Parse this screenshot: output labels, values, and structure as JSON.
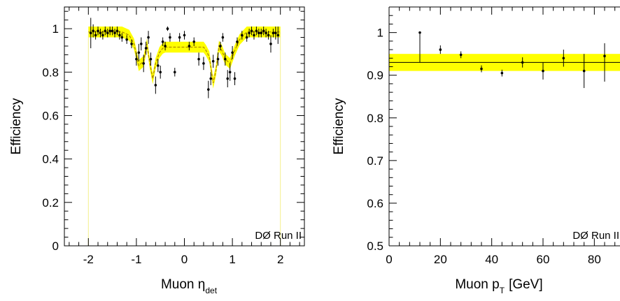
{
  "chart_data": [
    {
      "type": "scatter",
      "xlabel": "Muon η",
      "xlabel_subscript": "det",
      "ylabel": "Efficiency",
      "annotation": "DØ Run II",
      "xlim": [
        -2.5,
        2.5
      ],
      "ylim": [
        0,
        1.1
      ],
      "xticks": [
        -2,
        -1,
        0,
        1,
        2
      ],
      "yticks": [
        0,
        0.2,
        0.4,
        0.6,
        0.8,
        1
      ],
      "ytick_labels": [
        "0",
        "0.2",
        "0.4",
        "0.6",
        "0.8",
        "1"
      ],
      "band_color": "#ffff00",
      "series": [
        {
          "x": [
            -1.95,
            -1.9,
            -1.85,
            -1.8,
            -1.75,
            -1.7,
            -1.65,
            -1.6,
            -1.55,
            -1.5,
            -1.45,
            -1.4,
            -1.35,
            -1.3,
            -1.2,
            -1.1,
            -1.0,
            -0.95,
            -0.9,
            -0.85,
            -0.8,
            -0.75,
            -0.7,
            -0.6,
            -0.55,
            -0.5,
            -0.45,
            -0.4,
            -0.35,
            -0.3,
            -0.2,
            -0.1,
            0.0,
            0.1,
            0.2,
            0.3,
            0.4,
            0.5,
            0.55,
            0.6,
            0.7,
            0.75,
            0.8,
            0.85,
            0.9,
            0.95,
            1.0,
            1.05,
            1.1,
            1.2,
            1.3,
            1.35,
            1.4,
            1.45,
            1.5,
            1.55,
            1.6,
            1.65,
            1.7,
            1.75,
            1.8,
            1.85,
            1.9,
            1.95
          ],
          "y": [
            0.98,
            0.99,
            0.97,
            0.99,
            0.98,
            0.97,
            0.99,
            0.98,
            0.99,
            0.99,
            0.98,
            0.99,
            0.97,
            0.96,
            0.95,
            0.93,
            0.86,
            0.89,
            0.93,
            0.84,
            0.91,
            0.96,
            0.86,
            0.74,
            0.83,
            0.8,
            0.94,
            0.92,
            1.0,
            0.96,
            0.8,
            0.96,
            0.97,
            0.92,
            0.94,
            0.86,
            0.84,
            0.72,
            0.77,
            0.85,
            0.86,
            0.92,
            0.96,
            0.86,
            0.77,
            0.8,
            0.89,
            0.77,
            0.94,
            0.97,
            0.96,
            0.98,
            0.99,
            0.97,
            0.99,
            0.98,
            0.98,
            0.99,
            0.98,
            0.97,
            0.93,
            0.98,
            0.98,
            0.97
          ],
          "err": [
            0.07,
            0.03,
            0.02,
            0.02,
            0.02,
            0.02,
            0.02,
            0.02,
            0.02,
            0.02,
            0.02,
            0.02,
            0.02,
            0.02,
            0.02,
            0.02,
            0.03,
            0.04,
            0.03,
            0.04,
            0.03,
            0.03,
            0.03,
            0.04,
            0.03,
            0.03,
            0.02,
            0.02,
            0.01,
            0.02,
            0.02,
            0.02,
            0.02,
            0.02,
            0.02,
            0.03,
            0.03,
            0.04,
            0.03,
            0.03,
            0.03,
            0.02,
            0.02,
            0.03,
            0.04,
            0.04,
            0.03,
            0.03,
            0.02,
            0.02,
            0.02,
            0.02,
            0.02,
            0.02,
            0.02,
            0.02,
            0.02,
            0.02,
            0.02,
            0.02,
            0.04,
            0.02,
            0.03,
            0.04
          ]
        }
      ],
      "fit": {
        "x": [
          -2.0,
          -1.3,
          -1.15,
          -1.05,
          -0.95,
          -0.85,
          -0.78,
          -0.72,
          -0.66,
          -0.6,
          -0.52,
          -0.45,
          -0.4,
          0.4,
          0.45,
          0.52,
          0.6,
          0.66,
          0.72,
          0.78,
          0.85,
          0.95,
          1.05,
          1.15,
          1.3,
          2.0
        ],
        "y": [
          0.985,
          0.985,
          0.97,
          0.93,
          0.83,
          0.85,
          0.93,
          0.84,
          0.77,
          0.84,
          0.89,
          0.91,
          0.915,
          0.915,
          0.9,
          0.87,
          0.75,
          0.81,
          0.92,
          0.9,
          0.86,
          0.84,
          0.9,
          0.95,
          0.985,
          0.985
        ],
        "band_halfwidth": 0.025
      }
    },
    {
      "type": "scatter",
      "xlabel": "Muon p",
      "xlabel_subscript": "T",
      "xlabel_suffix": "[GeV]",
      "ylabel": "Efficiency",
      "annotation": "DØ Run II",
      "xlim": [
        0,
        90
      ],
      "ylim": [
        0.5,
        1.06
      ],
      "xticks": [
        0,
        20,
        40,
        60,
        80
      ],
      "yticks": [
        0.5,
        0.6,
        0.7,
        0.8,
        0.9,
        1
      ],
      "ytick_labels": [
        "0.5",
        "0.6",
        "0.7",
        "0.8",
        "0.9",
        "1"
      ],
      "band_color": "#ffff00",
      "series": [
        {
          "x": [
            12,
            20,
            28,
            36,
            44,
            52,
            60,
            68,
            76,
            84
          ],
          "y": [
            1.0,
            0.96,
            0.948,
            0.915,
            0.905,
            0.93,
            0.91,
            0.94,
            0.91,
            0.945
          ],
          "err_low": [
            0.07,
            0.01,
            0.008,
            0.008,
            0.008,
            0.012,
            0.02,
            0.02,
            0.04,
            0.06
          ],
          "err_high": [
            0.0,
            0.01,
            0.008,
            0.008,
            0.008,
            0.012,
            0.02,
            0.02,
            0.04,
            0.03
          ]
        }
      ],
      "fit": {
        "y": 0.93,
        "band_low": 0.91,
        "band_high": 0.95
      }
    }
  ]
}
